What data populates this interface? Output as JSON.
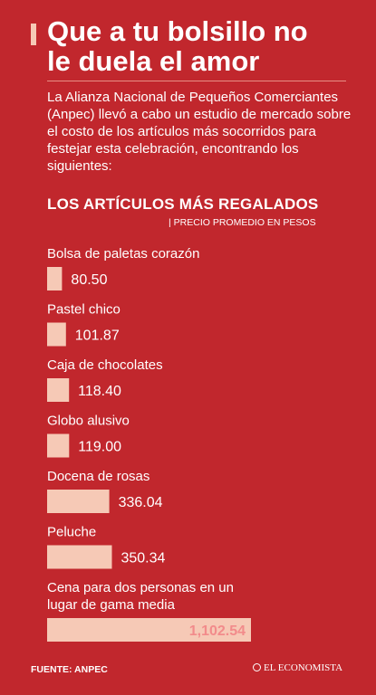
{
  "header": {
    "title_lines": [
      "Que a tu bolsillo no",
      "le duela el amor"
    ],
    "intro": "La Alianza Nacional de Pequeños Comerciantes (Anpec) llevó a cabo un estudio de mercado sobre el costo de los artículos más socorridos para festejar esta celebración, encontrando los siguientes:"
  },
  "colors": {
    "background": "#c1272d",
    "bar": "#f6c9b6",
    "text": "#ffffff",
    "highlight_label": "#f28b8b"
  },
  "chart_data": {
    "type": "bar",
    "orientation": "horizontal",
    "title": "LOS ARTÍCULOS MÁS REGALADOS",
    "subtitle": "| PRECIO PROMEDIO EN PESOS",
    "categories": [
      "Bolsa de paletas corazón",
      "Pastel chico",
      "Caja de chocolates",
      "Globo alusivo",
      "Docena de rosas",
      "Peluche",
      "Cena para dos personas en un lugar de gama media"
    ],
    "category_lines": [
      [
        "Bolsa de paletas corazón"
      ],
      [
        "Pastel chico"
      ],
      [
        "Caja de chocolates"
      ],
      [
        "Globo alusivo"
      ],
      [
        "Docena de rosas"
      ],
      [
        "Peluche"
      ],
      [
        "Cena para dos personas en un",
        "lugar de gama media"
      ]
    ],
    "values": [
      80.5,
      101.87,
      118.4,
      119.0,
      336.04,
      350.34,
      1102.54
    ],
    "value_labels": [
      "80.50",
      "101.87",
      "118.40",
      "119.00",
      "336.04",
      "350.34",
      "1,102.54"
    ],
    "xlim": [
      0,
      1102.54
    ]
  },
  "footer": {
    "source": "FUENTE: ANPEC",
    "brand": "EL ECONOMISTA"
  }
}
